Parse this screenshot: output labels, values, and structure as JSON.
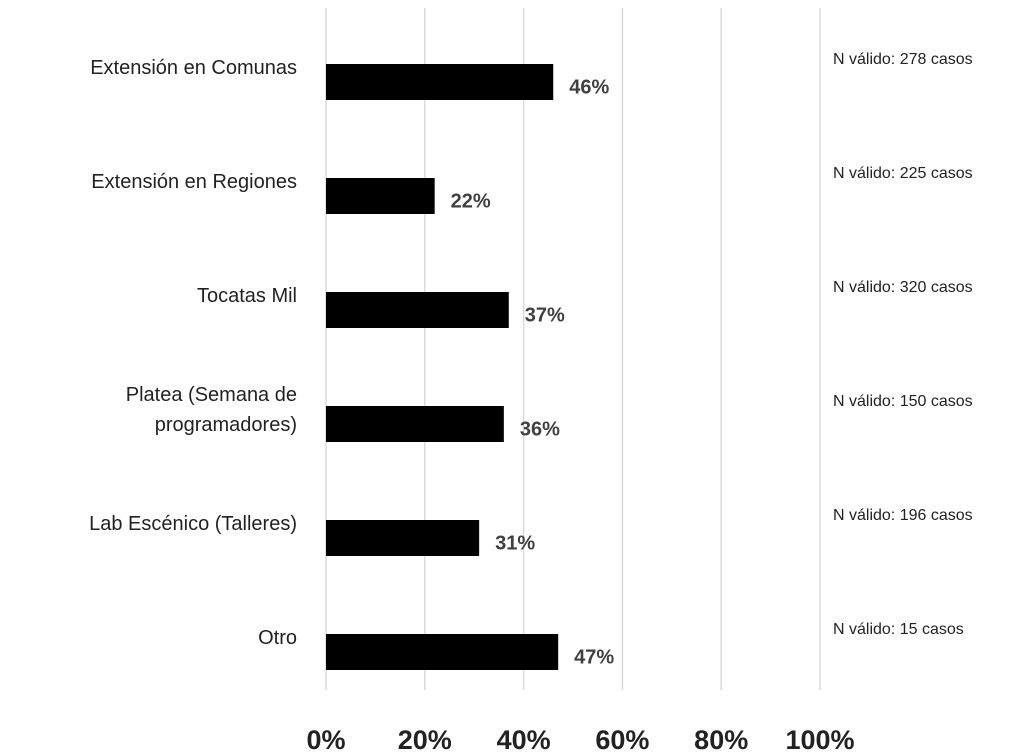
{
  "chart_data": {
    "type": "bar",
    "orientation": "horizontal",
    "categories": [
      "Extensión en Comunas",
      "Extensión en Regiones",
      "Tocatas Mil",
      "Platea (Semana de programadores)",
      "Lab Escénico (Talleres)",
      "Otro"
    ],
    "values": [
      46,
      22,
      37,
      36,
      31,
      47
    ],
    "value_labels": [
      "46%",
      "22%",
      "37%",
      "36%",
      "31%",
      "47%"
    ],
    "annotations": [
      "N válido: 278 casos",
      "N válido: 225 casos",
      "N válido: 320 casos",
      "N válido: 150 casos",
      "N válido: 196 casos",
      "N válido: 15 casos"
    ],
    "color": "#000000",
    "xlim": [
      0,
      100
    ],
    "xticks": [
      {
        "value": 0,
        "label": "0%"
      },
      {
        "value": 20,
        "label": "20%"
      },
      {
        "value": 40,
        "label": "40%"
      },
      {
        "value": 60,
        "label": "60%"
      },
      {
        "value": 80,
        "label": "80%"
      },
      {
        "value": 100,
        "label": "100%"
      }
    ],
    "grid": true
  }
}
